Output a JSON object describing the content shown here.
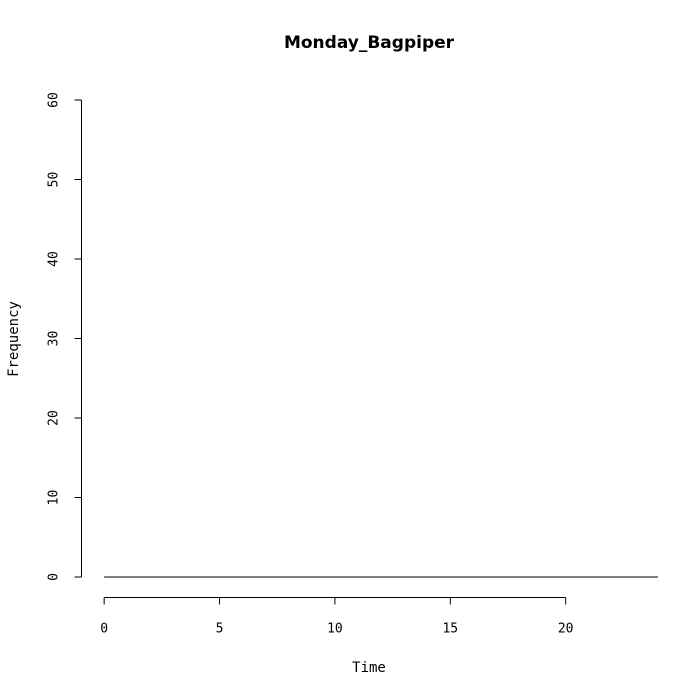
{
  "chart_data": {
    "type": "line",
    "title": "Monday_Bagpiper",
    "xlabel": "Time",
    "ylabel": "Frequency",
    "xlim": [
      -0.05,
      24
    ],
    "ylim": [
      0,
      60
    ],
    "xticks": [
      0,
      5,
      10,
      15,
      20
    ],
    "yticks": [
      0,
      10,
      20,
      30,
      40,
      50,
      60
    ],
    "grid": false,
    "series": [
      {
        "name": "Monday_Bagpiper",
        "x": [
          0,
          1,
          2,
          3,
          4,
          5,
          6,
          7,
          8,
          9,
          10,
          11,
          12,
          13,
          14,
          15,
          16,
          17,
          18,
          19,
          20,
          21,
          22,
          23,
          24
        ],
        "values": [
          0,
          0,
          0,
          0,
          0,
          0,
          0,
          0,
          0,
          0,
          0,
          0,
          0,
          0,
          0,
          0,
          0,
          0,
          0,
          0,
          0,
          0,
          0,
          0,
          0
        ]
      }
    ]
  }
}
